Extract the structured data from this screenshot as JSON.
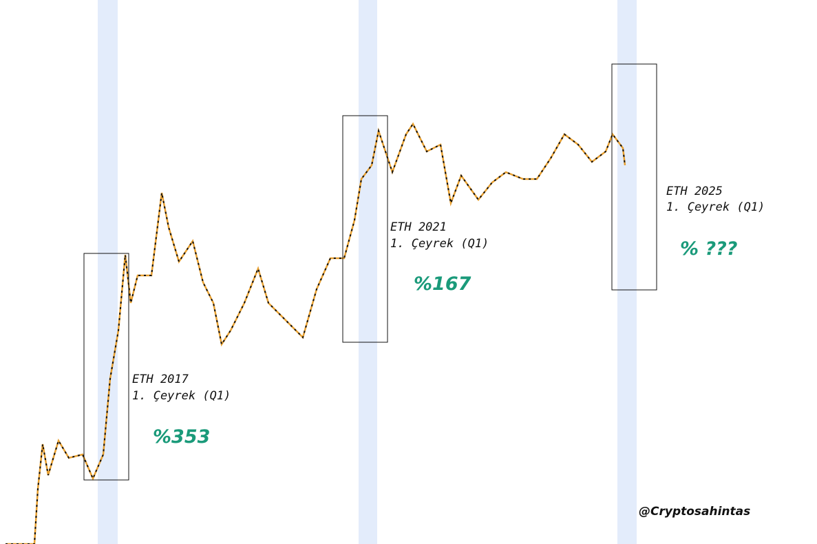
{
  "annotations": [
    {
      "title": "ETH  2017",
      "subtitle": "1. Çeyrek (Q1)",
      "change": "%353"
    },
    {
      "title": "ETH  2021",
      "subtitle": "1. Çeyrek (Q1)",
      "change": "%167"
    },
    {
      "title": "ETH 2025",
      "subtitle": "1. Çeyrek (Q1)",
      "change": "% ???"
    }
  ],
  "watermark": "@Cryptosahintas"
}
